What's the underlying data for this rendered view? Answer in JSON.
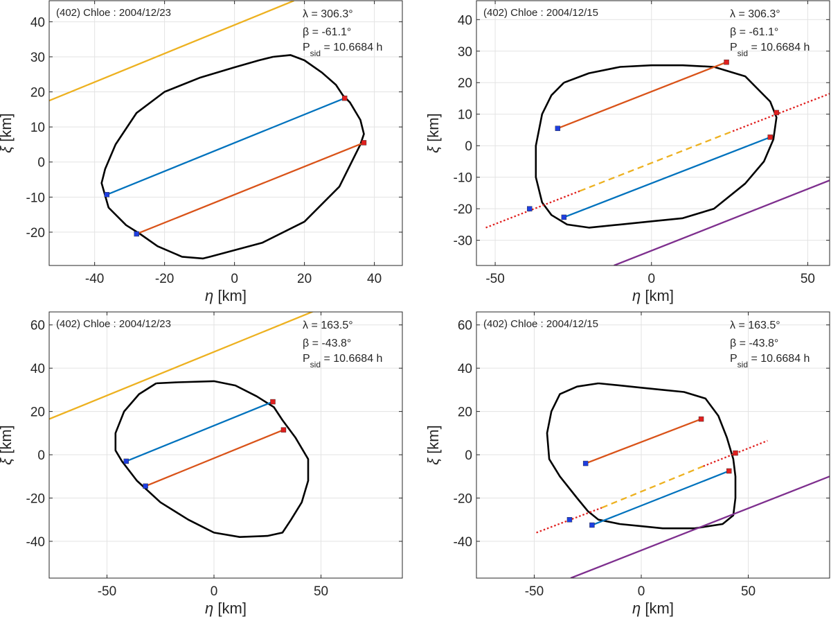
{
  "chart_data": [
    {
      "type": "line",
      "title": "(402) Chloe : 2004/12/23",
      "xlabel_symbol": "η",
      "xlabel_unit": " [km]",
      "ylabel_symbol": "ξ",
      "ylabel_unit": " [km]",
      "xlim": [
        -53,
        48
      ],
      "ylim": [
        -29.5,
        46
      ],
      "xticks": [
        -40,
        -20,
        0,
        20,
        40
      ],
      "yticks": [
        -20,
        -10,
        0,
        10,
        20,
        30,
        40
      ],
      "grid": true,
      "params": {
        "lambda": "λ = 306.3°",
        "beta": "β = -61.1°",
        "psid_name": "P",
        "psid_sub": "sid",
        "psid_val": " = 10.6684 h"
      },
      "outline": [
        [
          11,
          30
        ],
        [
          7,
          29
        ],
        [
          0,
          27
        ],
        [
          -10,
          24
        ],
        [
          -20,
          20
        ],
        [
          -28,
          14
        ],
        [
          -34,
          5
        ],
        [
          -37,
          -2
        ],
        [
          -38,
          -6
        ],
        [
          -36,
          -13
        ],
        [
          -31,
          -18
        ],
        [
          -27,
          -20.5
        ],
        [
          -22,
          -24
        ],
        [
          -15,
          -27
        ],
        [
          -9,
          -27.5
        ],
        [
          -7,
          -27
        ],
        [
          8,
          -23
        ],
        [
          20,
          -17
        ],
        [
          30,
          -7
        ],
        [
          36,
          5
        ],
        [
          37,
          8
        ],
        [
          36,
          12
        ],
        [
          33,
          17
        ],
        [
          31,
          19
        ],
        [
          29,
          22
        ],
        [
          25,
          25.5
        ],
        [
          20,
          29
        ],
        [
          16,
          30.5
        ],
        [
          11,
          30
        ]
      ],
      "chords": [
        {
          "color": "#0072BD",
          "style": "solid",
          "points": [
            [
              -36.5,
              -9.3
            ],
            [
              31.5,
              18.2
            ]
          ]
        },
        {
          "color": "#D95319",
          "style": "solid",
          "points": [
            [
              -28,
              -20.5
            ],
            [
              37,
              5.5
            ]
          ]
        },
        {
          "color": "#EDB120",
          "style": "solid",
          "points": [
            [
              -53,
              17.5
            ],
            [
              17,
              46
            ]
          ]
        }
      ],
      "markers": [
        {
          "color": "#1f3fe0",
          "x": -36.5,
          "y": -9.3
        },
        {
          "color": "#e0201f",
          "x": 31.5,
          "y": 18.2
        },
        {
          "color": "#1f3fe0",
          "x": -28,
          "y": -20.5
        },
        {
          "color": "#e0201f",
          "x": 37,
          "y": 5.5
        }
      ]
    },
    {
      "type": "line",
      "title": "(402) Chloe : 2004/12/15",
      "xlabel_symbol": "η",
      "xlabel_unit": " [km]",
      "ylabel_symbol": "ξ",
      "ylabel_unit": " [km]",
      "xlim": [
        -56,
        57
      ],
      "ylim": [
        -38,
        46
      ],
      "xticks": [
        -50,
        0,
        50
      ],
      "yticks": [
        -30,
        -20,
        -10,
        0,
        10,
        20,
        30,
        40
      ],
      "grid": true,
      "params": {
        "lambda": "λ = 306.3°",
        "beta": "β = -61.1°",
        "psid_name": "P",
        "psid_sub": "sid",
        "psid_val": " = 10.6684 h"
      },
      "outline": [
        [
          -28,
          20
        ],
        [
          -20,
          23
        ],
        [
          -10,
          25
        ],
        [
          0,
          25.5
        ],
        [
          10,
          25.5
        ],
        [
          20,
          25
        ],
        [
          30,
          22
        ],
        [
          38,
          14
        ],
        [
          40,
          9
        ],
        [
          39,
          2
        ],
        [
          36,
          -5
        ],
        [
          30,
          -12
        ],
        [
          20,
          -20
        ],
        [
          10,
          -23
        ],
        [
          0,
          -24
        ],
        [
          -10,
          -25
        ],
        [
          -20,
          -26
        ],
        [
          -27,
          -25
        ],
        [
          -32,
          -22
        ],
        [
          -35,
          -18
        ],
        [
          -37,
          -10
        ],
        [
          -37,
          0
        ],
        [
          -35,
          10
        ],
        [
          -32,
          16
        ],
        [
          -28,
          20
        ]
      ],
      "chords": [
        {
          "color": "#D95319",
          "style": "solid",
          "points": [
            [
              -30,
              5.5
            ],
            [
              24,
              26.5
            ]
          ]
        },
        {
          "color": "#0072BD",
          "style": "solid",
          "points": [
            [
              -28,
              -22.7
            ],
            [
              38,
              2.7
            ]
          ]
        },
        {
          "color": "#e0201f",
          "style": "dotted",
          "points": [
            [
              -53,
              -26
            ],
            [
              -23,
              -14.4
            ]
          ]
        },
        {
          "color": "#EDB120",
          "style": "dashed",
          "points": [
            [
              -23,
              -14.4
            ],
            [
              26,
              4.6
            ]
          ]
        },
        {
          "color": "#e0201f",
          "style": "dotted",
          "points": [
            [
              26,
              4.6
            ],
            [
              57,
              16.5
            ]
          ]
        },
        {
          "color": "#7E2F8E",
          "style": "solid",
          "points": [
            [
              -12,
              -38
            ],
            [
              57,
              -11
            ]
          ]
        }
      ],
      "markers": [
        {
          "color": "#1f3fe0",
          "x": -30,
          "y": 5.5
        },
        {
          "color": "#e0201f",
          "x": 24,
          "y": 26.5
        },
        {
          "color": "#1f3fe0",
          "x": -28,
          "y": -22.7
        },
        {
          "color": "#e0201f",
          "x": 38,
          "y": 2.7
        },
        {
          "color": "#1f3fe0",
          "x": -39,
          "y": -20
        },
        {
          "color": "#e0201f",
          "x": 40,
          "y": 10.5
        }
      ]
    },
    {
      "type": "line",
      "title": "(402) Chloe : 2004/12/23",
      "xlabel_symbol": "η",
      "xlabel_unit": " [km]",
      "ylabel_symbol": "ξ",
      "ylabel_unit": " [km]",
      "xlim": [
        -77,
        88
      ],
      "ylim": [
        -57,
        66
      ],
      "xticks": [
        -50,
        0,
        50
      ],
      "yticks": [
        -40,
        -20,
        0,
        20,
        40,
        60
      ],
      "grid": true,
      "params": {
        "lambda": "λ = 163.5°",
        "beta": "β = -43.8°",
        "psid_name": "P",
        "psid_sub": "sid",
        "psid_val": " = 10.6684 h"
      },
      "outline": [
        [
          -27,
          33
        ],
        [
          -17,
          33.5
        ],
        [
          0,
          34
        ],
        [
          10,
          32
        ],
        [
          20,
          27
        ],
        [
          28,
          22
        ],
        [
          32,
          16
        ],
        [
          38,
          8
        ],
        [
          44,
          -2
        ],
        [
          44,
          -12
        ],
        [
          41,
          -22
        ],
        [
          36,
          -30
        ],
        [
          32,
          -36
        ],
        [
          25,
          -37.5
        ],
        [
          12,
          -38
        ],
        [
          0,
          -36
        ],
        [
          -12,
          -30
        ],
        [
          -25,
          -22
        ],
        [
          -36,
          -12
        ],
        [
          -43,
          -3
        ],
        [
          -46,
          2
        ],
        [
          -46,
          10
        ],
        [
          -42,
          20
        ],
        [
          -35,
          28
        ],
        [
          -27,
          33
        ]
      ],
      "chords": [
        {
          "color": "#0072BD",
          "style": "solid",
          "points": [
            [
              -41,
              -3
            ],
            [
              27.5,
              24.5
            ]
          ]
        },
        {
          "color": "#D95319",
          "style": "solid",
          "points": [
            [
              -32,
              -14.5
            ],
            [
              32.5,
              11.5
            ]
          ]
        },
        {
          "color": "#EDB120",
          "style": "solid",
          "points": [
            [
              -77,
              16.5
            ],
            [
              88,
              83
            ]
          ]
        }
      ],
      "markers": [
        {
          "color": "#1f3fe0",
          "x": -41,
          "y": -3
        },
        {
          "color": "#e0201f",
          "x": 27.5,
          "y": 24.5
        },
        {
          "color": "#1f3fe0",
          "x": -32,
          "y": -14.5
        },
        {
          "color": "#e0201f",
          "x": 32.5,
          "y": 11.5
        }
      ]
    },
    {
      "type": "line",
      "title": "(402) Chloe : 2004/12/15",
      "xlabel_symbol": "η",
      "xlabel_unit": " [km]",
      "ylabel_symbol": "ξ",
      "ylabel_unit": " [km]",
      "xlim": [
        -77,
        88
      ],
      "ylim": [
        -57,
        66
      ],
      "xticks": [
        -50,
        0,
        50
      ],
      "yticks": [
        -40,
        -20,
        0,
        20,
        40,
        60
      ],
      "grid": true,
      "params": {
        "lambda": "λ = 163.5°",
        "beta": "β = -43.8°",
        "psid_name": "P",
        "psid_sub": "sid",
        "psid_val": " = 10.6684 h"
      },
      "outline": [
        [
          -20,
          33
        ],
        [
          -10,
          32
        ],
        [
          0,
          31
        ],
        [
          10,
          30
        ],
        [
          20,
          29
        ],
        [
          30,
          26
        ],
        [
          36,
          18
        ],
        [
          40,
          8
        ],
        [
          43,
          -2
        ],
        [
          44,
          -10
        ],
        [
          44,
          -20
        ],
        [
          43,
          -28
        ],
        [
          38,
          -32
        ],
        [
          25,
          -34
        ],
        [
          10,
          -34
        ],
        [
          0,
          -33
        ],
        [
          -10,
          -32
        ],
        [
          -20,
          -30
        ],
        [
          -25,
          -26
        ],
        [
          -30,
          -20
        ],
        [
          -38,
          -10
        ],
        [
          -43,
          -2
        ],
        [
          -44,
          10
        ],
        [
          -42,
          20
        ],
        [
          -38,
          28
        ],
        [
          -30,
          31.5
        ],
        [
          -20,
          33
        ]
      ],
      "chords": [
        {
          "color": "#D95319",
          "style": "solid",
          "points": [
            [
              -26,
              -4
            ],
            [
              28,
              16.5
            ]
          ]
        },
        {
          "color": "#0072BD",
          "style": "solid",
          "points": [
            [
              -23,
              -32.5
            ],
            [
              41,
              -7.5
            ]
          ]
        },
        {
          "color": "#e0201f",
          "style": "dotted",
          "points": [
            [
              -49,
              -36
            ],
            [
              -18.5,
              -24.5
            ]
          ]
        },
        {
          "color": "#EDB120",
          "style": "dashed",
          "points": [
            [
              -18.5,
              -24.5
            ],
            [
              29,
              -5.3
            ]
          ]
        },
        {
          "color": "#e0201f",
          "style": "dotted",
          "points": [
            [
              29,
              -5.3
            ],
            [
              59,
              6.5
            ]
          ]
        },
        {
          "color": "#7E2F8E",
          "style": "solid",
          "points": [
            [
              -33,
              -57
            ],
            [
              88,
              -10
            ]
          ]
        }
      ],
      "markers": [
        {
          "color": "#1f3fe0",
          "x": -26,
          "y": -4
        },
        {
          "color": "#e0201f",
          "x": 28,
          "y": 16.5
        },
        {
          "color": "#1f3fe0",
          "x": -23,
          "y": -32.5
        },
        {
          "color": "#e0201f",
          "x": 41,
          "y": -7.5
        },
        {
          "color": "#1f3fe0",
          "x": -33.5,
          "y": -30
        },
        {
          "color": "#e0201f",
          "x": 44,
          "y": 0.8
        }
      ]
    }
  ]
}
